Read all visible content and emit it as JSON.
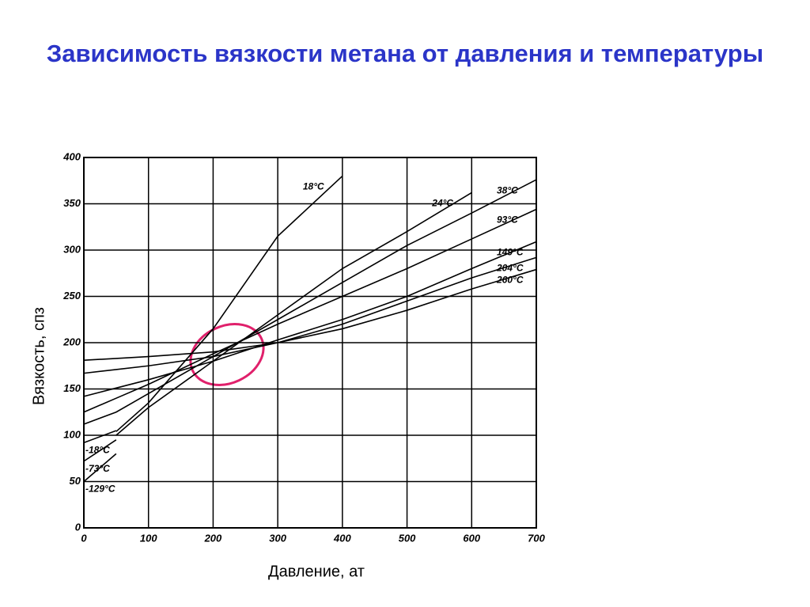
{
  "chart_data": {
    "type": "line",
    "title": "Зависимость вязкости метана от давления и температуры",
    "x_label": "Давление, ат",
    "y_label": "Вязкость, спз",
    "x": [
      0,
      50,
      100,
      200,
      300,
      400,
      500,
      600,
      700
    ],
    "series": [
      {
        "name": "18°C",
        "color": "#000000",
        "values": [
          null,
          104,
          135,
          215,
          315,
          380,
          null,
          null,
          null
        ]
      },
      {
        "name": "24°C",
        "color": "#000000",
        "values": [
          null,
          100,
          130,
          180,
          230,
          280,
          320,
          362,
          null
        ]
      },
      {
        "name": "38°C",
        "color": "#000000",
        "values": [
          112,
          125,
          145,
          185,
          225,
          265,
          305,
          340,
          376
        ]
      },
      {
        "name": "93°C",
        "color": "#000000",
        "values": [
          125,
          140,
          155,
          188,
          220,
          250,
          280,
          312,
          344
        ]
      },
      {
        "name": "149°C",
        "color": "#000000",
        "values": [
          142,
          151,
          160,
          180,
          203,
          225,
          250,
          280,
          309
        ]
      },
      {
        "name": "204°C",
        "color": "#000000",
        "values": [
          167,
          171,
          175,
          185,
          200,
          220,
          245,
          270,
          292
        ]
      },
      {
        "name": "260°C",
        "color": "#000000",
        "values": [
          181,
          183,
          185,
          190,
          200,
          215,
          235,
          258,
          279
        ]
      },
      {
        "name": "-18°C",
        "color": "#000000",
        "values": [
          92,
          105,
          null,
          null,
          null,
          null,
          null,
          null,
          null
        ]
      },
      {
        "name": "-73°C",
        "color": "#000000",
        "values": [
          72,
          95,
          null,
          null,
          null,
          null,
          null,
          null,
          null
        ]
      },
      {
        "name": "-129°C",
        "color": "#000000",
        "values": [
          50,
          80,
          null,
          null,
          null,
          null,
          null,
          null,
          null
        ]
      }
    ],
    "xlim": [
      0,
      700
    ],
    "xticks": [
      0,
      100,
      200,
      300,
      400,
      500,
      600,
      700
    ],
    "ylim": [
      0,
      400
    ],
    "yticks": [
      0,
      50,
      100,
      150,
      200,
      250,
      300,
      350,
      400
    ],
    "grid": true
  }
}
